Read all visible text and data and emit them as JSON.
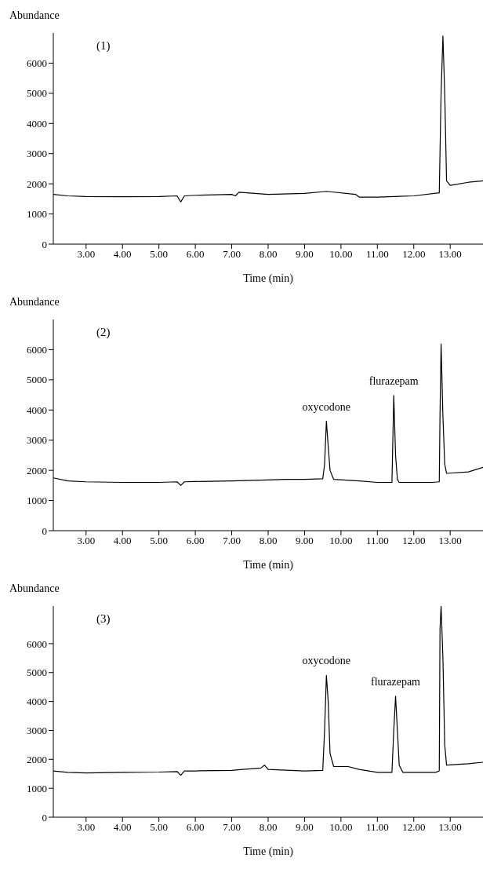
{
  "chart_data": [
    {
      "type": "line",
      "ylabel": "Abundance",
      "xlabel": "Time (min)",
      "annotations": [
        "(1)"
      ],
      "marker": "none",
      "color": "#000000",
      "x": [
        2.1,
        2.5,
        3,
        4,
        5,
        5.5,
        5.6,
        5.7,
        6,
        7,
        7.1,
        7.2,
        8,
        9,
        9.6,
        10.4,
        10.5,
        11,
        12,
        12.7,
        12.75,
        12.8,
        12.85,
        12.9,
        13,
        13.5,
        13.9
      ],
      "values": [
        1650,
        1600,
        1580,
        1570,
        1580,
        1600,
        1400,
        1600,
        1620,
        1650,
        1600,
        1720,
        1650,
        1680,
        1750,
        1650,
        1560,
        1560,
        1600,
        1700,
        5000,
        6900,
        5000,
        2100,
        1950,
        2050,
        2100
      ],
      "xlim": [
        2.1,
        13.9
      ],
      "ylim": [
        0,
        7000
      ],
      "yticks": [
        0,
        1000,
        2000,
        3000,
        4000,
        5000,
        6000
      ],
      "xticks": [
        {
          "value": 3,
          "label": "3.00"
        },
        {
          "value": 4,
          "label": "4.00"
        },
        {
          "value": 5,
          "label": "5.00"
        },
        {
          "value": 6,
          "label": "6.00"
        },
        {
          "value": 7,
          "label": "7.00"
        },
        {
          "value": 8,
          "label": "8.00"
        },
        {
          "value": 9,
          "label": "9.00"
        },
        {
          "value": 10,
          "label": "10.00"
        },
        {
          "value": 11,
          "label": "11.00"
        },
        {
          "value": 12,
          "label": "12.00"
        },
        {
          "value": 13,
          "label": "13.00"
        }
      ]
    },
    {
      "type": "line",
      "ylabel": "Abundance",
      "xlabel": "Time (min)",
      "annotations": [
        "(2)",
        {
          "text": "oxycodone",
          "x": 9.6,
          "y": 3630
        },
        {
          "text": "flurazepam",
          "x": 11.45,
          "y": 4480
        }
      ],
      "marker": "none",
      "color": "#000000",
      "x": [
        2.1,
        2.5,
        3,
        4,
        5,
        5.5,
        5.6,
        5.7,
        6,
        7,
        8,
        8.5,
        9,
        9.5,
        9.55,
        9.6,
        9.65,
        9.7,
        9.8,
        10.5,
        11,
        11.4,
        11.45,
        11.5,
        11.55,
        11.6,
        12.5,
        12.7,
        12.72,
        12.75,
        12.8,
        12.85,
        12.9,
        13.5,
        13.9
      ],
      "values": [
        1750,
        1650,
        1620,
        1600,
        1600,
        1620,
        1500,
        1620,
        1630,
        1650,
        1680,
        1700,
        1700,
        1720,
        2200,
        3630,
        2800,
        2000,
        1700,
        1650,
        1600,
        1600,
        4480,
        2500,
        1700,
        1600,
        1600,
        1620,
        3800,
        6190,
        3800,
        2200,
        1900,
        1950,
        2100
      ],
      "xlim": [
        2.1,
        13.9
      ],
      "ylim": [
        0,
        7000
      ],
      "yticks": [
        0,
        1000,
        2000,
        3000,
        4000,
        5000,
        6000
      ],
      "xticks": [
        {
          "value": 3,
          "label": "3.00"
        },
        {
          "value": 4,
          "label": "4.00"
        },
        {
          "value": 5,
          "label": "5.00"
        },
        {
          "value": 6,
          "label": "6.00"
        },
        {
          "value": 7,
          "label": "7.00"
        },
        {
          "value": 8,
          "label": "8.00"
        },
        {
          "value": 9,
          "label": "9.00"
        },
        {
          "value": 10,
          "label": "10.00"
        },
        {
          "value": 11,
          "label": "11.00"
        },
        {
          "value": 12,
          "label": "12.00"
        },
        {
          "value": 13,
          "label": "13.00"
        }
      ]
    },
    {
      "type": "line",
      "ylabel": "Abundance",
      "xlabel": "Time (min)",
      "annotations": [
        "(3)",
        {
          "text": "oxycodone",
          "x": 9.6,
          "y": 4900
        },
        {
          "text": "flurazepam",
          "x": 11.5,
          "y": 4180
        }
      ],
      "marker": "none",
      "color": "#000000",
      "x": [
        2.1,
        2.5,
        3,
        4,
        5,
        5.5,
        5.6,
        5.7,
        6,
        7,
        7.3,
        7.8,
        7.9,
        8,
        9,
        9.5,
        9.55,
        9.6,
        9.65,
        9.7,
        9.8,
        10.2,
        10.5,
        11,
        11.4,
        11.45,
        11.5,
        11.55,
        11.6,
        11.7,
        12.6,
        12.7,
        12.72,
        12.75,
        12.8,
        12.85,
        12.9,
        13.5,
        13.9
      ],
      "values": [
        1600,
        1550,
        1530,
        1550,
        1560,
        1580,
        1450,
        1600,
        1600,
        1620,
        1650,
        1700,
        1800,
        1650,
        1600,
        1620,
        3000,
        4900,
        4000,
        2200,
        1750,
        1750,
        1650,
        1550,
        1550,
        3000,
        4180,
        3000,
        1800,
        1550,
        1550,
        1600,
        6500,
        7300,
        5500,
        2500,
        1800,
        1850,
        1900
      ],
      "xlim": [
        2.1,
        13.9
      ],
      "ylim": [
        0,
        7300
      ],
      "yticks": [
        0,
        1000,
        2000,
        3000,
        4000,
        5000,
        6000
      ],
      "xticks": [
        {
          "value": 3,
          "label": "3.00"
        },
        {
          "value": 4,
          "label": "4.00"
        },
        {
          "value": 5,
          "label": "5.00"
        },
        {
          "value": 6,
          "label": "6.00"
        },
        {
          "value": 7,
          "label": "7.00"
        },
        {
          "value": 8,
          "label": "8.00"
        },
        {
          "value": 9,
          "label": "9.00"
        },
        {
          "value": 10,
          "label": "10.00"
        },
        {
          "value": 11,
          "label": "11.00"
        },
        {
          "value": 12,
          "label": "12.00"
        },
        {
          "value": 13,
          "label": "13.00"
        }
      ]
    }
  ]
}
